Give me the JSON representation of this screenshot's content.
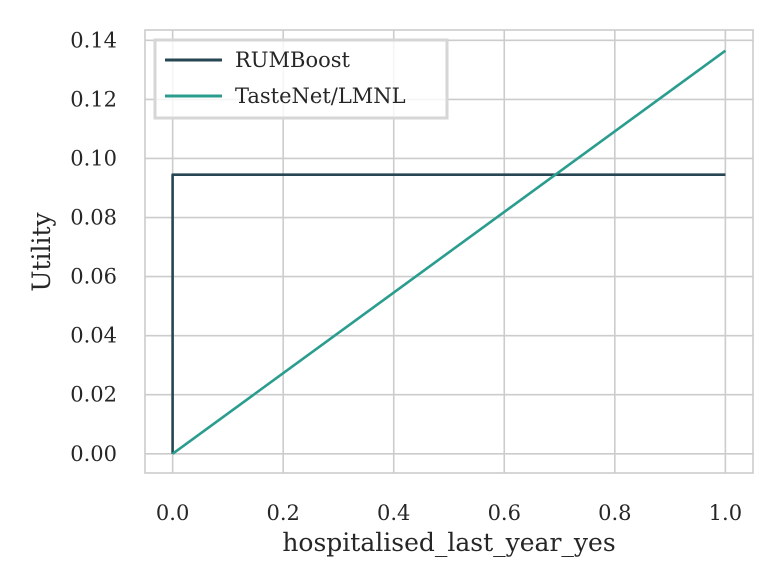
{
  "chart_data": {
    "type": "line",
    "title": "",
    "xlabel": "hospitalised_last_year_yes",
    "ylabel": "Utility",
    "xlim": [
      -0.05,
      1.05
    ],
    "ylim": [
      -0.0065,
      0.1435
    ],
    "x_ticks": [
      0.0,
      0.2,
      0.4,
      0.6,
      0.8,
      1.0
    ],
    "x_tick_labels": [
      "0.0",
      "0.2",
      "0.4",
      "0.6",
      "0.8",
      "1.0"
    ],
    "y_ticks": [
      0.0,
      0.02,
      0.04,
      0.06,
      0.08,
      0.1,
      0.12,
      0.14
    ],
    "y_tick_labels": [
      "0.00",
      "0.02",
      "0.04",
      "0.06",
      "0.08",
      "0.10",
      "0.12",
      "0.14"
    ],
    "grid": true,
    "legend_position": "top-left",
    "series": [
      {
        "name": "RUMBoost",
        "color": "#264653",
        "x": [
          0.0,
          0.0,
          1.0
        ],
        "y": [
          0.0,
          0.0945,
          0.0945
        ]
      },
      {
        "name": "TasteNet/LMNL",
        "color": "#2a9d8f",
        "x": [
          0.0,
          1.0
        ],
        "y": [
          0.0,
          0.1365
        ]
      }
    ]
  }
}
